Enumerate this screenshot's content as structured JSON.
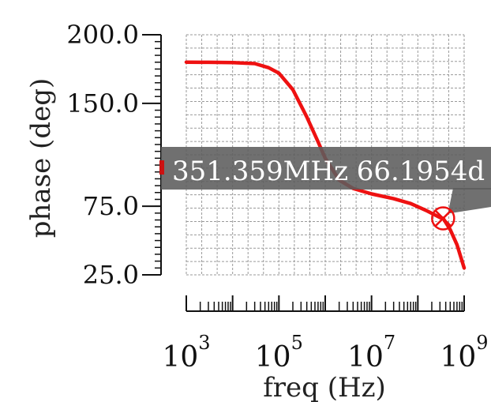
{
  "chart_data": {
    "type": "line",
    "title": "",
    "xlabel": "freq (Hz)",
    "ylabel": "phase (deg)",
    "x_scale": "log",
    "xlim": [
      1000,
      1000000000
    ],
    "ylim": [
      25,
      200
    ],
    "grid": true,
    "x_major_ticks": [
      {
        "value": 1000,
        "base": "10",
        "exp": "3"
      },
      {
        "value": 100000,
        "base": "10",
        "exp": "5"
      },
      {
        "value": 10000000,
        "base": "10",
        "exp": "7"
      },
      {
        "value": 1000000000,
        "base": "10",
        "exp": "9"
      }
    ],
    "y_ticks": [
      {
        "value": 200,
        "label": "200.0"
      },
      {
        "value": 150,
        "label": "150.0"
      },
      {
        "value": 75,
        "label": "75.0"
      },
      {
        "value": 25,
        "label": "25.0"
      }
    ],
    "series": [
      {
        "color": "#ee1111",
        "x": [
          1000,
          3000,
          10000,
          30000,
          60000,
          100000,
          200000,
          400000,
          700000,
          1000000,
          2000000,
          4000000,
          10000000,
          30000000,
          70000000,
          150000000,
          300000000,
          351359000,
          500000000,
          700000000,
          1000000000
        ],
        "y": [
          180,
          179.9,
          179.7,
          179,
          176,
          172,
          160,
          140,
          122,
          110,
          94,
          88,
          84,
          80.5,
          77,
          72,
          66.8,
          66.2,
          58,
          47,
          30
        ]
      }
    ],
    "marker": {
      "x": 351359000,
      "y": 66.1954,
      "label": "351.359MHz 66.1954d"
    }
  }
}
